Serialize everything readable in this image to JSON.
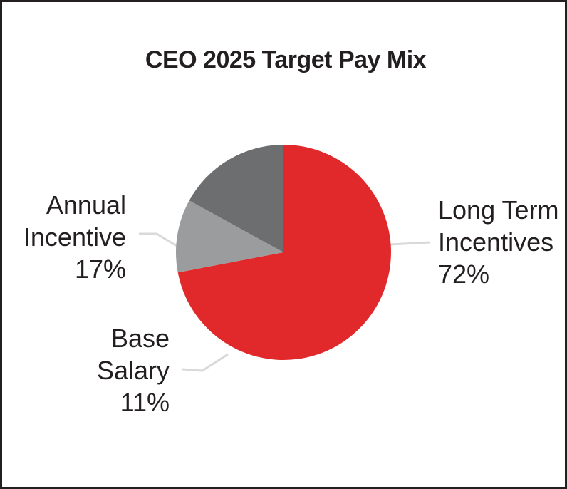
{
  "chart_data": {
    "type": "pie",
    "title": "CEO 2025 Target Pay Mix",
    "slices": [
      {
        "name_lines": [
          "Long Term",
          "Incentives"
        ],
        "value": 72,
        "value_label": "72%",
        "color": "#e1282a"
      },
      {
        "name_lines": [
          "Base",
          "Salary"
        ],
        "value": 11,
        "value_label": "11%",
        "color": "#9b9c9e"
      },
      {
        "name_lines": [
          "Annual",
          "Incentive"
        ],
        "value": 17,
        "value_label": "17%",
        "color": "#6d6e70"
      }
    ],
    "leader_line_color": "#d9d9d9",
    "legend": "none"
  }
}
